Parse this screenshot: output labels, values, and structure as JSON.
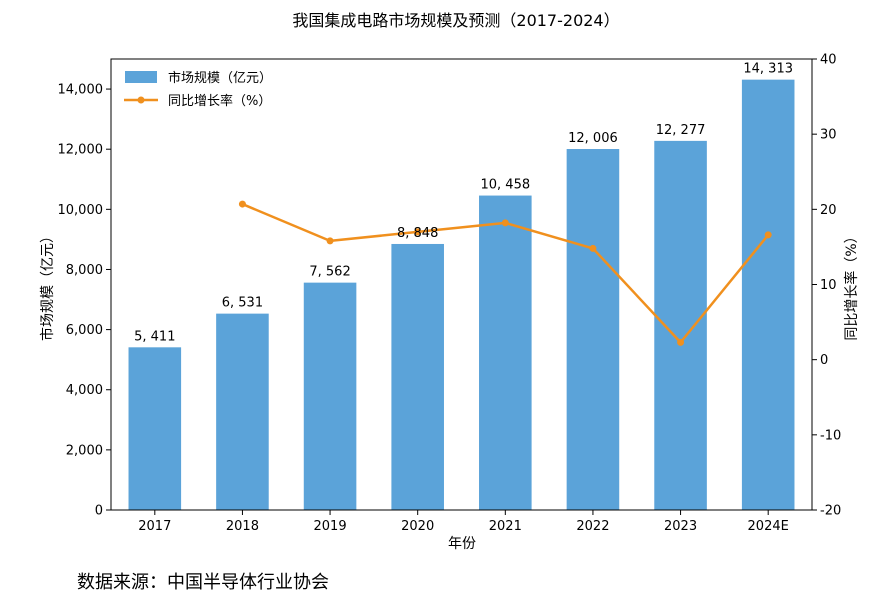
{
  "chart_data": {
    "type": "bar",
    "title": "我国集成电路市场规模及预测（2017-2024）",
    "xlabel": "年份",
    "ylabel": "市场规模（亿元）",
    "y2label": "同比增长率（%）",
    "categories": [
      "2017",
      "2018",
      "2019",
      "2020",
      "2021",
      "2022",
      "2023",
      "2024E"
    ],
    "ylim": [
      0,
      15000
    ],
    "yticks": [
      0,
      2000,
      4000,
      6000,
      8000,
      10000,
      12000,
      14000
    ],
    "ytick_labels": [
      "0",
      "2,000",
      "4,000",
      "6,000",
      "8,000",
      "10,000",
      "12,000",
      "14,000"
    ],
    "y2lim": [
      -20,
      40
    ],
    "y2ticks": [
      -20,
      -10,
      0,
      10,
      20,
      30,
      40
    ],
    "y2tick_labels": [
      "-20",
      "-10",
      "0",
      "10",
      "20",
      "30",
      "40"
    ],
    "series": [
      {
        "name": "市场规模（亿元）",
        "type": "bar",
        "axis": "left",
        "color": "#5ba3d9",
        "values": [
          5411,
          6531,
          7562,
          8848,
          10458,
          12006,
          12277,
          14313
        ],
        "labels": [
          "5, 411",
          "6, 531",
          "7, 562",
          "8, 848",
          "10, 458",
          "12, 006",
          "12, 277",
          "14, 313"
        ]
      },
      {
        "name": "同比增长率（%）",
        "type": "line",
        "axis": "right",
        "color": "#f0901e",
        "values": [
          null,
          20.7,
          15.8,
          17.0,
          18.2,
          14.8,
          2.3,
          16.6
        ]
      }
    ],
    "legend": "top-left",
    "grid": false
  },
  "source": "数据来源：中国半导体行业协会"
}
